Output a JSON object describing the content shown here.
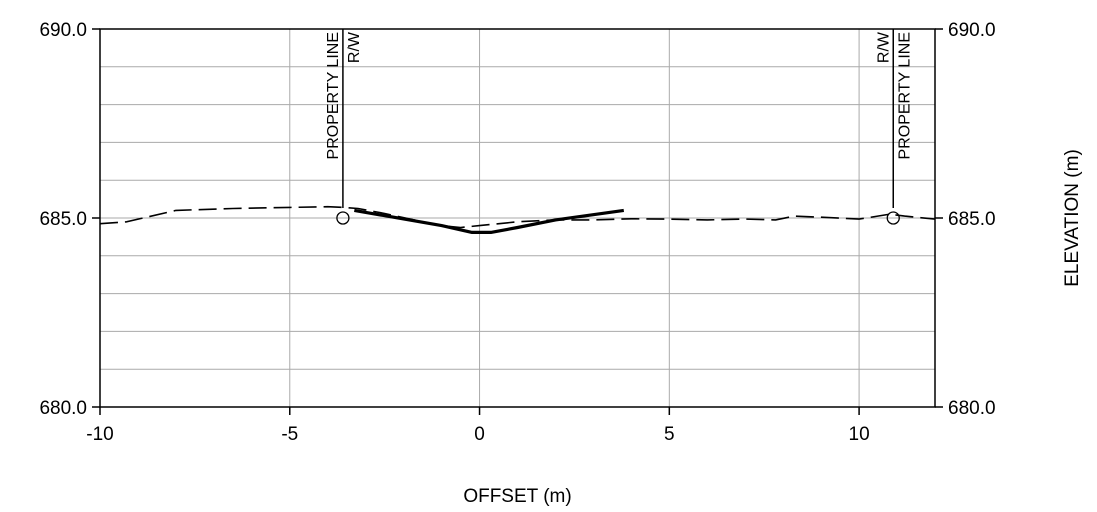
{
  "chart_data": {
    "type": "line",
    "title": "",
    "xlabel": "OFFSET (m)",
    "ylabel": "ELEVATION (m)",
    "xlim": [
      -10,
      12
    ],
    "ylim": [
      680,
      690
    ],
    "x_ticks": [
      -10,
      -5,
      0,
      5,
      10
    ],
    "x_tick_labels": [
      "-10",
      "-5",
      "0",
      "5",
      "10"
    ],
    "y_ticks": [
      680,
      685,
      690
    ],
    "y_tick_labels": [
      "680.0",
      "685.0",
      "690.0"
    ],
    "y_minor_step": 1,
    "grid": true,
    "series": [
      {
        "style": "dashed",
        "x": [
          -10,
          -9.3,
          -8,
          -6.5,
          -5,
          -4.0,
          -3.6,
          -3.2,
          -2.5,
          -1.5,
          -1.0,
          -0.5,
          0,
          1,
          2,
          3,
          4,
          5,
          6,
          7,
          7.8,
          8.3,
          9,
          10,
          10.8,
          11.2,
          12
        ],
        "y": [
          684.85,
          684.9,
          685.2,
          685.25,
          685.28,
          685.3,
          685.28,
          685.25,
          685.12,
          684.9,
          684.8,
          684.75,
          684.8,
          684.9,
          684.95,
          684.95,
          684.98,
          684.97,
          684.95,
          684.97,
          684.95,
          685.05,
          685.02,
          684.97,
          685.1,
          685.05,
          684.97
        ]
      },
      {
        "style": "solid",
        "x": [
          -3.3,
          -1.0,
          -0.2,
          0.3,
          1.0,
          2.0,
          3.8
        ],
        "y": [
          685.2,
          684.8,
          684.62,
          684.62,
          684.75,
          684.95,
          685.2
        ]
      }
    ],
    "annotations": [
      {
        "x": -3.6,
        "y": 685.0,
        "labels": [
          "PROPERTY LINE",
          "R/W"
        ],
        "side": "left"
      },
      {
        "x": 10.9,
        "y": 685.0,
        "labels": [
          "R/W",
          "PROPERTY LINE"
        ],
        "side": "right"
      }
    ]
  }
}
